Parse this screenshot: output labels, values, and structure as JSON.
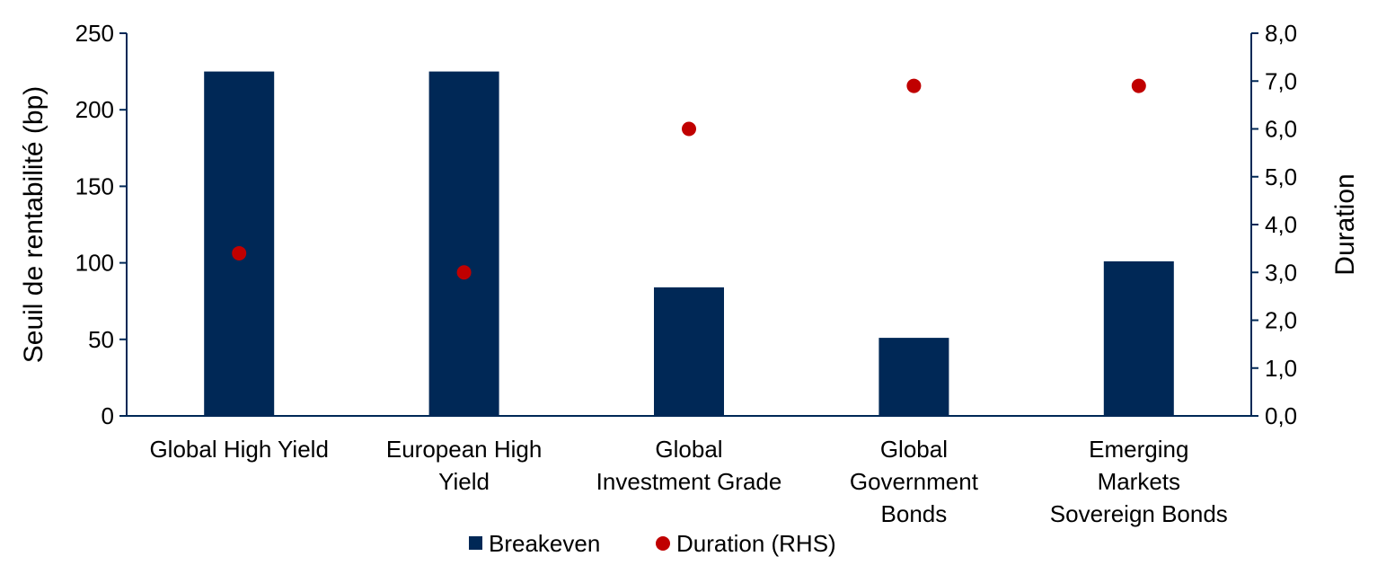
{
  "chart_data": {
    "type": "bar",
    "categories": [
      [
        "Global High Yield"
      ],
      [
        "European High",
        "Yield"
      ],
      [
        "Global",
        "Investment Grade"
      ],
      [
        "Global",
        "Government",
        "Bonds"
      ],
      [
        "Emerging",
        "Markets",
        "Sovereign Bonds"
      ]
    ],
    "series": [
      {
        "name": "Breakeven",
        "type": "bar",
        "axis": "left",
        "values": [
          225,
          225,
          84,
          51,
          101
        ],
        "color": "#002856"
      },
      {
        "name": "Duration (RHS)",
        "type": "scatter",
        "axis": "right",
        "values": [
          3.4,
          3.0,
          6.0,
          6.9,
          6.9
        ],
        "color": "#C00000"
      }
    ],
    "ylabel": "Seuil de rentabilité (bp)",
    "y2label": "Duration",
    "ylim": [
      0,
      250
    ],
    "y2lim": [
      0,
      8
    ],
    "yticks": [
      "0",
      "50",
      "100",
      "150",
      "200",
      "250"
    ],
    "y2ticks": [
      "0,0",
      "1,0",
      "2,0",
      "3,0",
      "4,0",
      "5,0",
      "6,0",
      "7,0",
      "8,0"
    ],
    "grid": false,
    "legend_position": "bottom",
    "axis_color": "#002856"
  }
}
